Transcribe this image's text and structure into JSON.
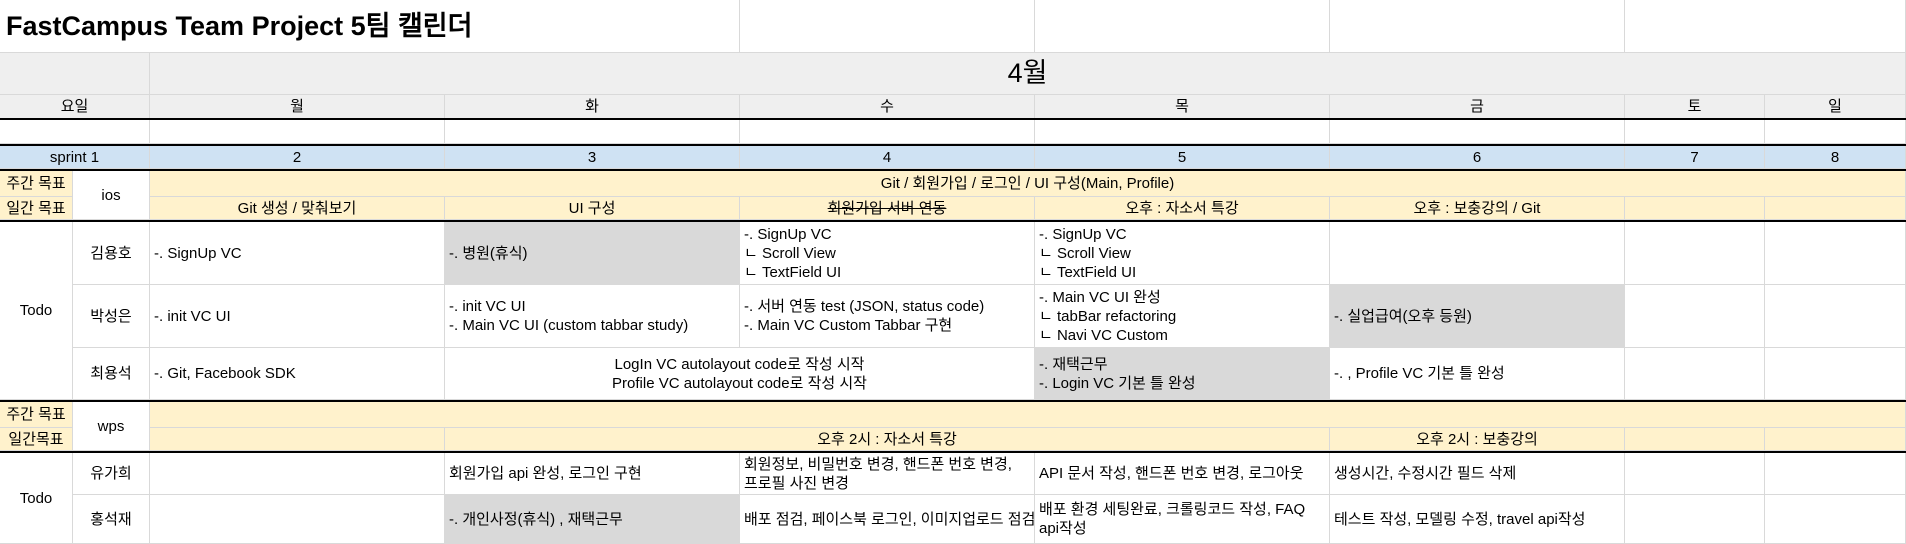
{
  "title": "FastCampus Team Project 5팀 캘린더",
  "month": "4월",
  "headers": {
    "yoil": "요일",
    "days": [
      "월",
      "화",
      "수",
      "목",
      "금",
      "토",
      "일"
    ]
  },
  "sprint": {
    "label": "sprint 1",
    "dates": [
      "2",
      "3",
      "4",
      "5",
      "6",
      "7",
      "8"
    ]
  },
  "ios": {
    "weekly_label": "주간 목표",
    "daily_label": "일간 목표",
    "team": "ios",
    "weekly_goal": "Git / 회원가입 / 로그인 / UI 구성(Main, Profile)",
    "daily_goals": [
      "Git 생성 / 맞춰보기",
      "UI 구성",
      "회원가입 서버 연동",
      "오후 : 자소서 특강",
      "오후 : 보충강의 / Git"
    ],
    "todo_label": "Todo",
    "members": [
      {
        "name": "김용호",
        "mon": "-. SignUp VC",
        "tue": "-. 병원(휴식)",
        "wed": "-. SignUp VC\nㄴ Scroll View\nㄴ TextField UI",
        "thu": "-. SignUp VC\nㄴ Scroll View\nㄴ TextField UI",
        "fri": ""
      },
      {
        "name": "박성은",
        "mon": "-. init VC UI",
        "tue": "-. init VC UI\n-. Main VC UI (custom tabbar study)",
        "wed": "-. 서버 연동 test (JSON, status code)\n-. Main VC Custom Tabbar 구현",
        "thu": "-. Main VC UI 완성\nㄴ tabBar refactoring\nㄴ Navi VC Custom",
        "fri": "-. 실업급여(오후 등원)"
      },
      {
        "name": "최용석",
        "mon": "-. Git, Facebook SDK",
        "tuewed": "LogIn VC autolayout code로 작성 시작\nProfile VC autolayout code로 작성 시작",
        "thu": "-. 재택근무\n-. Login VC 기본 틀 완성",
        "fri": "-. , Profile VC 기본 틀 완성"
      }
    ]
  },
  "wps": {
    "weekly_label": "주간 목표",
    "daily_label": "일간목표",
    "team": "wps",
    "daily_goals": [
      "오후 2시 : 자소서 특강",
      "오후 2시 : 보충강의"
    ],
    "todo_label": "Todo",
    "members": [
      {
        "name": "유가희",
        "tue": "회원가입 api 완성, 로그인 구현",
        "wed": "회원정보, 비밀번호 변경, 핸드폰 번호 변경,\n프로필 사진 변경",
        "thu": "API 문서 작성, 핸드폰 번호 변경, 로그아웃",
        "fri": "생성시간, 수정시간 필드 삭제"
      },
      {
        "name": "홍석재",
        "tue": "-. 개인사정(휴식) , 재택근무",
        "wed": "배포 점검, 페이스북 로그인, 이미지업로드 점검",
        "thu": "배포 환경 세팅완료, 크롤링코드 작성, FAQ\napi작성",
        "fri": "테스트 작성, 모델링 수정, travel api작성"
      }
    ]
  }
}
